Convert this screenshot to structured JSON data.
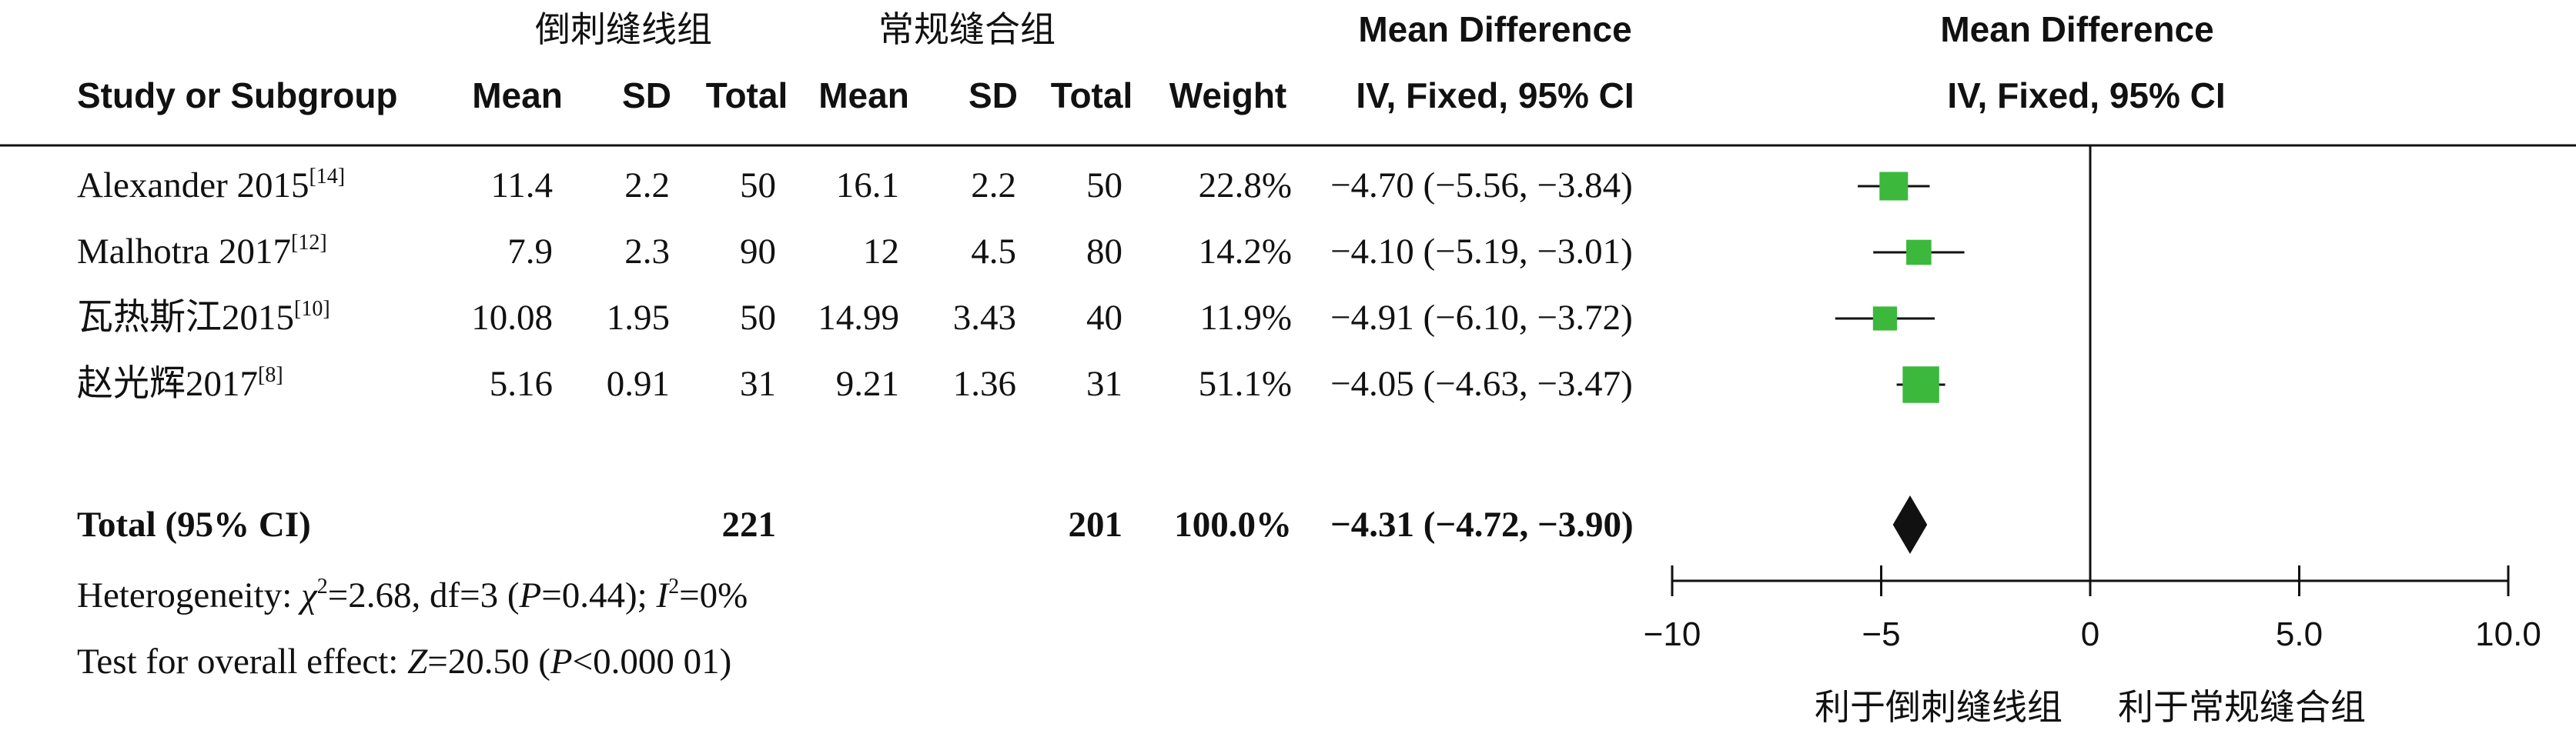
{
  "groups": {
    "experimental": "倒刺缝线组",
    "control": "常规缝合组"
  },
  "headers": {
    "study": "Study or Subgroup",
    "mean": "Mean",
    "sd": "SD",
    "total": "Total",
    "weight": "Weight",
    "md_title": "Mean Difference",
    "md_method": "IV, Fixed, 95% CI",
    "plot_title": "Mean Difference",
    "plot_method": "IV, Fixed, 95% CI"
  },
  "chart_data": {
    "type": "forest",
    "xlim": [
      -10,
      10
    ],
    "xticks": [
      -10,
      -5,
      0,
      5,
      10
    ],
    "xtick_labels": [
      "−10",
      "−5",
      "0",
      "5.0",
      "10.0"
    ],
    "favours_left": "利于倒刺缝线组",
    "favours_right": "利于常规缝合组",
    "marker_color": "#3cb83c",
    "studies": [
      {
        "name": "Alexander 2015",
        "ref": "[14]",
        "exp_mean": "11.4",
        "exp_sd": "2.2",
        "exp_total": "50",
        "ctl_mean": "16.1",
        "ctl_sd": "2.2",
        "ctl_total": "50",
        "weight": "22.8%",
        "ci_text": "−4.70 (−5.56, −3.84)",
        "md": -4.7,
        "lo": -5.56,
        "hi": -3.84,
        "w": 22.8
      },
      {
        "name": "Malhotra 2017",
        "ref": "[12]",
        "exp_mean": "7.9",
        "exp_sd": "2.3",
        "exp_total": "90",
        "ctl_mean": "12",
        "ctl_sd": "4.5",
        "ctl_total": "80",
        "weight": "14.2%",
        "ci_text": "−4.10 (−5.19, −3.01)",
        "md": -4.1,
        "lo": -5.19,
        "hi": -3.01,
        "w": 14.2
      },
      {
        "name": "瓦热斯江2015",
        "ref": "[10]",
        "exp_mean": "10.08",
        "exp_sd": "1.95",
        "exp_total": "50",
        "ctl_mean": "14.99",
        "ctl_sd": "3.43",
        "ctl_total": "40",
        "weight": "11.9%",
        "ci_text": "−4.91 (−6.10, −3.72)",
        "md": -4.91,
        "lo": -6.1,
        "hi": -3.72,
        "w": 11.9
      },
      {
        "name": "赵光辉2017",
        "ref": "[8]",
        "exp_mean": "5.16",
        "exp_sd": "0.91",
        "exp_total": "31",
        "ctl_mean": "9.21",
        "ctl_sd": "1.36",
        "ctl_total": "31",
        "weight": "51.1%",
        "ci_text": "−4.05 (−4.63, −3.47)",
        "md": -4.05,
        "lo": -4.63,
        "hi": -3.47,
        "w": 51.1
      }
    ],
    "total": {
      "label": "Total (95% CI)",
      "exp_total": "221",
      "ctl_total": "201",
      "weight": "100.0%",
      "ci_text": "−4.31 (−4.72, −3.90)",
      "md": -4.31,
      "lo": -4.72,
      "hi": -3.9
    },
    "heterogeneity": "Heterogeneity: χ²=2.68, df=3 (P=0.44); I²=0%",
    "overall_effect": "Test for overall effect: Z=20.50 (P<0.000 01)"
  }
}
